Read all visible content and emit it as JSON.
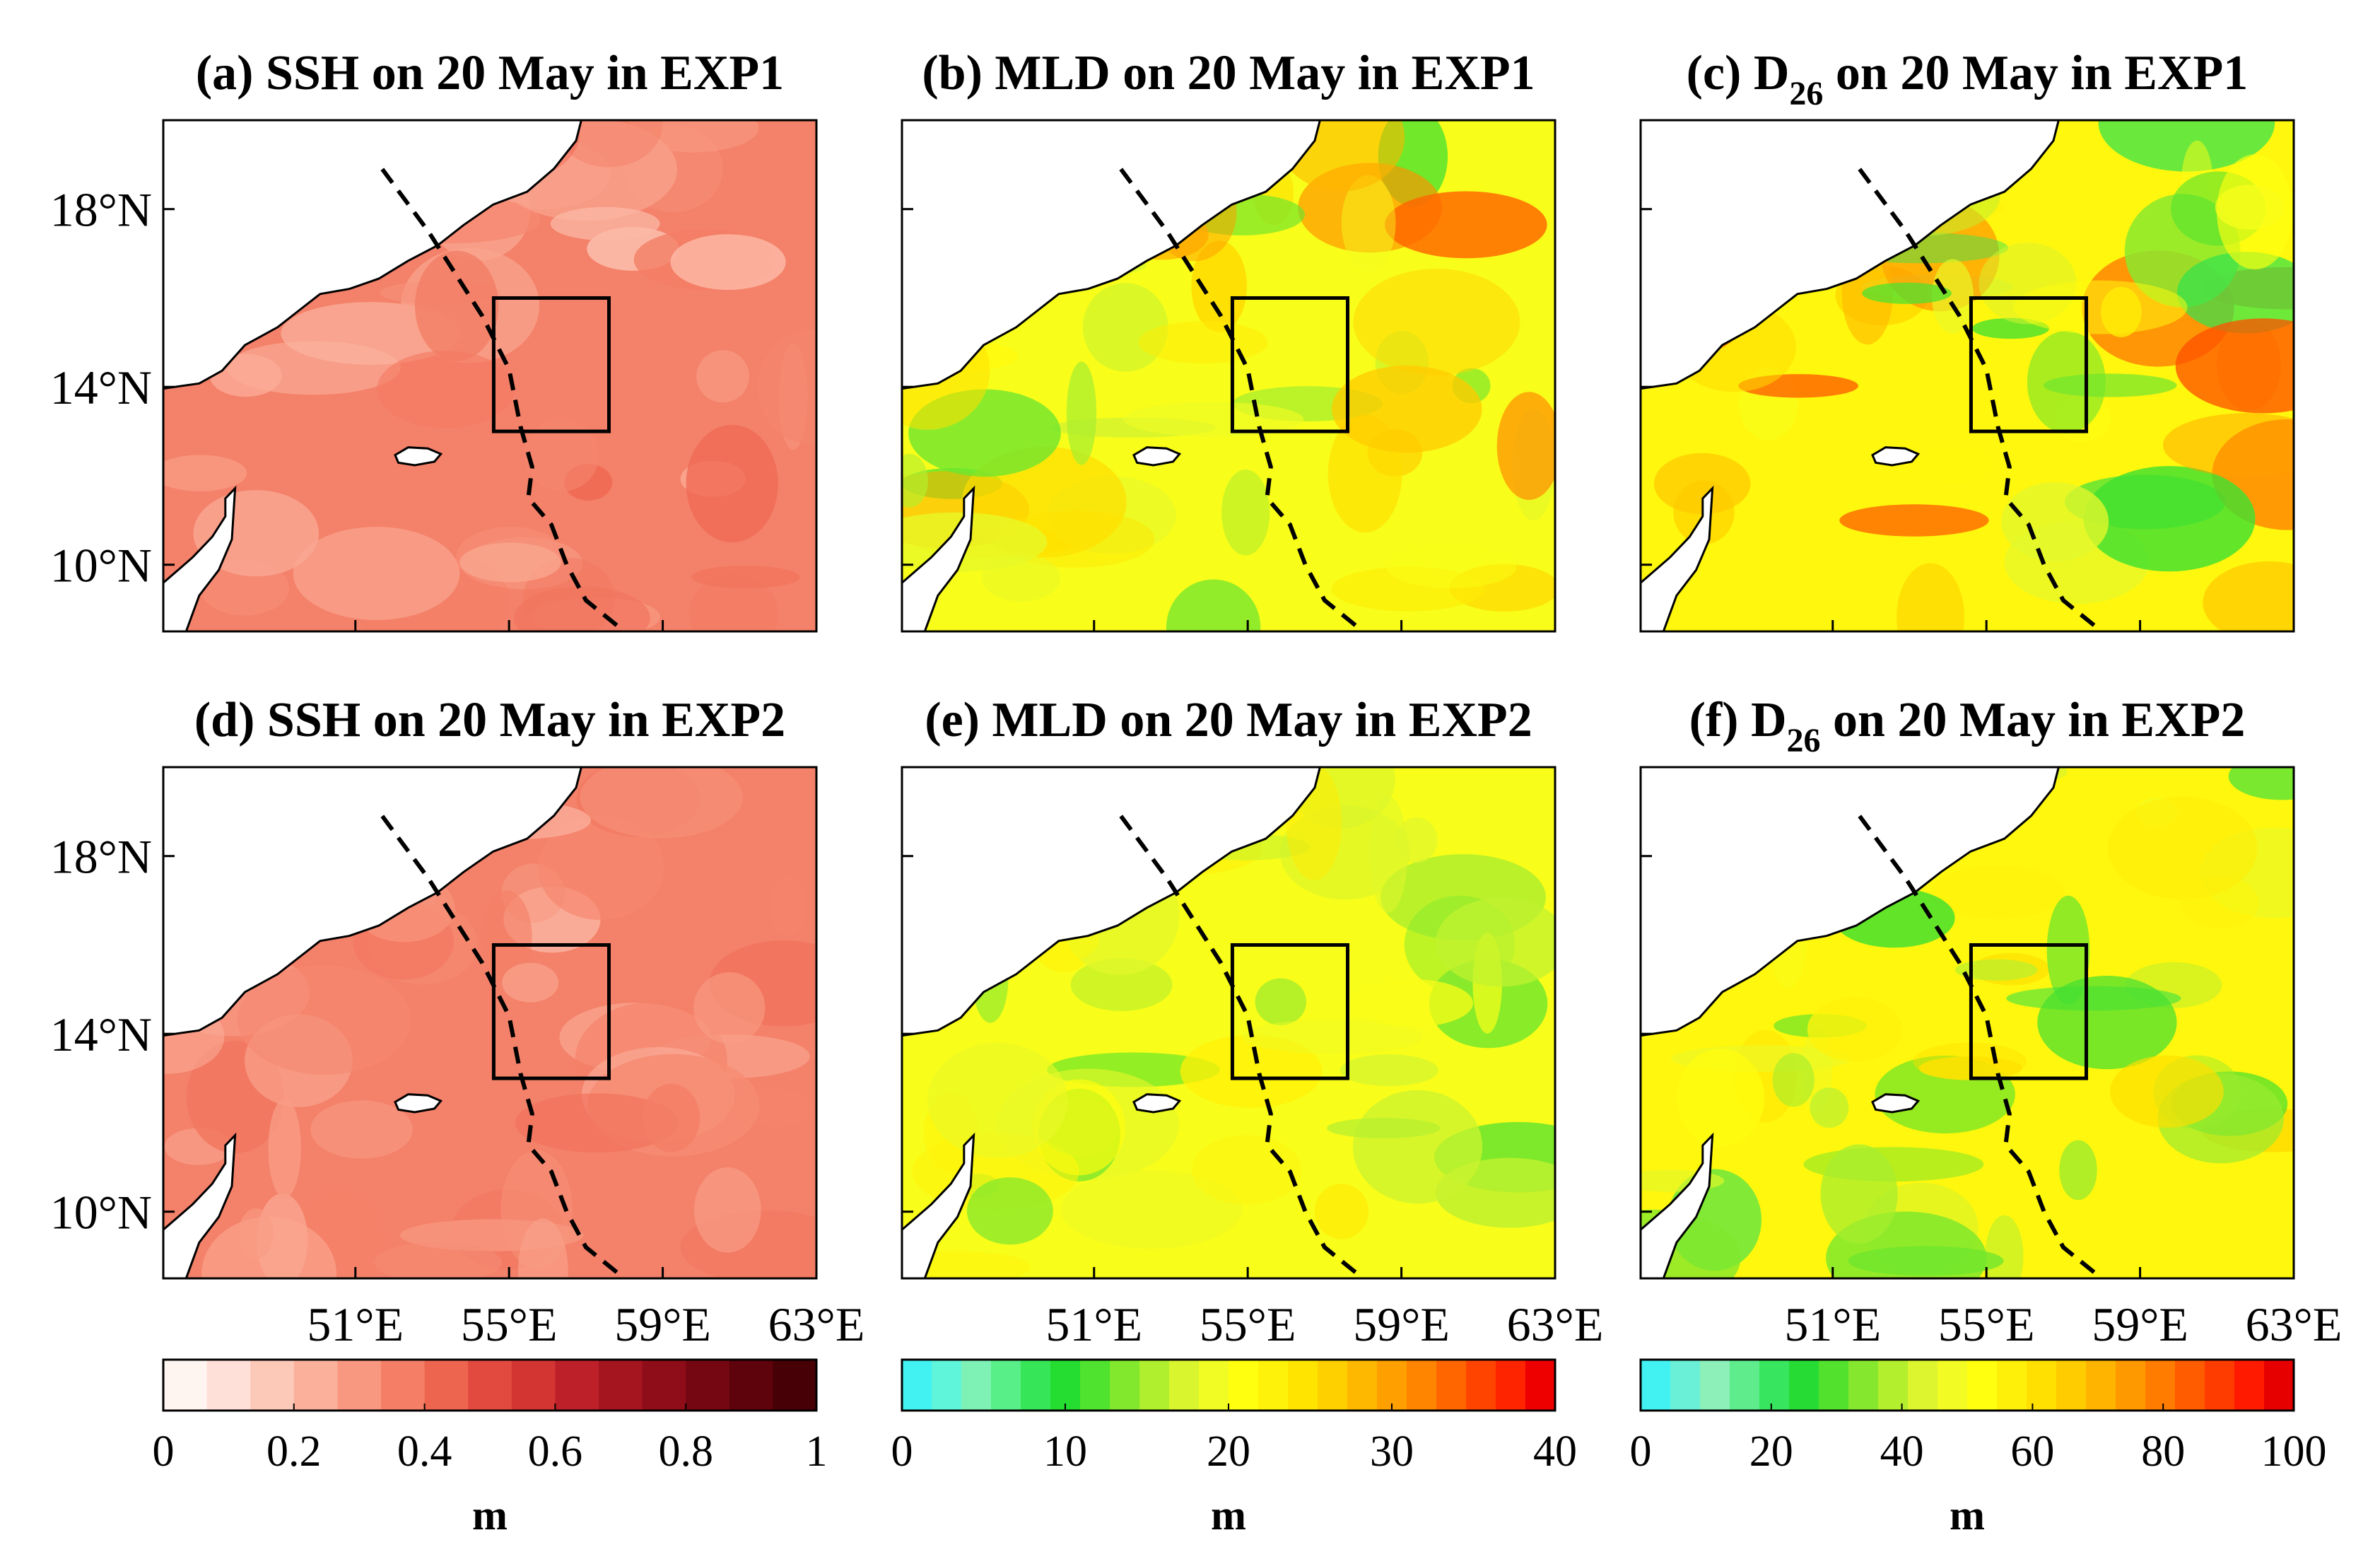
{
  "chart_data": [
    {
      "panel": "a",
      "type": "heatmap",
      "variable": "SSH",
      "title": {
        "prefix": "(a) SSH",
        "sub": "",
        "suffix": " on 20 May in EXP1"
      },
      "colorbar": "ssh",
      "range": [
        0.15,
        0.45
      ],
      "dominant_value": 0.35,
      "xlim": [
        46,
        63
      ],
      "ylim": [
        8.5,
        20
      ],
      "xticks": [
        51,
        55,
        59,
        63
      ],
      "yticks": [
        18,
        14,
        10
      ]
    },
    {
      "panel": "b",
      "type": "heatmap",
      "variable": "MLD",
      "title": {
        "prefix": "(b) MLD",
        "sub": "",
        "suffix": " on 20 May in EXP1"
      },
      "colorbar": "mld",
      "range": [
        10,
        35
      ],
      "dominant_value": 20,
      "xlim": [
        46,
        63
      ],
      "ylim": [
        8.5,
        20
      ],
      "xticks": [
        51,
        55,
        59,
        63
      ],
      "yticks": [
        18,
        14,
        10
      ]
    },
    {
      "panel": "c",
      "type": "heatmap",
      "variable": "D26",
      "title": {
        "prefix": "(c) D",
        "sub": "26",
        "suffix": " on 20 May in EXP1"
      },
      "colorbar": "d26",
      "range": [
        20,
        90
      ],
      "dominant_value": 55,
      "xlim": [
        46,
        63
      ],
      "ylim": [
        8.5,
        20
      ],
      "xticks": [
        51,
        55,
        59,
        63
      ],
      "yticks": [
        18,
        14,
        10
      ]
    },
    {
      "panel": "d",
      "type": "heatmap",
      "variable": "SSH",
      "title": {
        "prefix": "(d) SSH",
        "sub": "",
        "suffix": " on 20 May in EXP2"
      },
      "colorbar": "ssh",
      "range": [
        0.2,
        0.4
      ],
      "dominant_value": 0.35,
      "xlim": [
        46,
        63
      ],
      "ylim": [
        8.5,
        20
      ],
      "xticks": [
        51,
        55,
        59,
        63
      ],
      "yticks": [
        18,
        14,
        10
      ]
    },
    {
      "panel": "e",
      "type": "heatmap",
      "variable": "MLD",
      "title": {
        "prefix": "(e) MLD",
        "sub": "",
        "suffix": " on 20 May in EXP2"
      },
      "colorbar": "mld",
      "range": [
        10,
        25
      ],
      "dominant_value": 20,
      "xlim": [
        46,
        63
      ],
      "ylim": [
        8.5,
        20
      ],
      "xticks": [
        51,
        55,
        59,
        63
      ],
      "yticks": [
        18,
        14,
        10
      ]
    },
    {
      "panel": "f",
      "type": "heatmap",
      "variable": "D26",
      "title": {
        "prefix": "(f) D",
        "sub": "26",
        "suffix": " on 20 May in EXP2"
      },
      "colorbar": "d26",
      "range": [
        20,
        70
      ],
      "dominant_value": 55,
      "xlim": [
        46,
        63
      ],
      "ylim": [
        8.5,
        20
      ],
      "xticks": [
        51,
        55,
        59,
        63
      ],
      "yticks": [
        18,
        14,
        10
      ]
    }
  ],
  "axes": {
    "ylabels": [
      "18°N",
      "14°N",
      "10°N"
    ],
    "xlabels": [
      "51°E",
      "55°E",
      "59°E",
      "63°E"
    ]
  },
  "track": [
    {
      "lon": 51.7,
      "lat": 18.9
    },
    {
      "lon": 52.9,
      "lat": 17.5
    },
    {
      "lon": 54.3,
      "lat": 15.6
    },
    {
      "lon": 55.0,
      "lat": 14.4
    },
    {
      "lon": 55.3,
      "lat": 13.1
    },
    {
      "lon": 55.6,
      "lat": 12.2
    },
    {
      "lon": 55.5,
      "lat": 11.5
    },
    {
      "lon": 56.1,
      "lat": 10.9
    },
    {
      "lon": 56.5,
      "lat": 10.0
    },
    {
      "lon": 57.0,
      "lat": 9.2
    },
    {
      "lon": 58.0,
      "lat": 8.5
    }
  ],
  "box": {
    "lon": [
      54.6,
      57.6
    ],
    "lat": [
      13.0,
      16.0
    ]
  },
  "colorbars": {
    "ssh": {
      "unit": "m",
      "ticks": [
        "0",
        "0.2",
        "0.4",
        "0.6",
        "0.8",
        "1"
      ],
      "colors": [
        "#fff5f0",
        "#fee0d8",
        "#fcc8b8",
        "#fbb09c",
        "#f89880",
        "#f47e66",
        "#ee654f",
        "#e34a3f",
        "#d33533",
        "#bd2028",
        "#a51520",
        "#8e0d18",
        "#750712",
        "#5e020b",
        "#470005"
      ]
    },
    "mld": {
      "unit": "m",
      "ticks": [
        "0",
        "10",
        "20",
        "30",
        "40"
      ],
      "colors": [
        "#42f2f2",
        "#5ef5da",
        "#7ef2b4",
        "#58ee88",
        "#36e658",
        "#24dd30",
        "#4fe22e",
        "#82e82e",
        "#b0ef2e",
        "#d8f52e",
        "#f1fb24",
        "#ffff10",
        "#fff20a",
        "#ffe400",
        "#ffd000",
        "#ffb800",
        "#ff9f00",
        "#ff8400",
        "#ff6600",
        "#ff4400",
        "#ff2400",
        "#ee0000"
      ]
    },
    "d26": {
      "unit": "m",
      "ticks": [
        "0",
        "20",
        "40",
        "60",
        "80",
        "100"
      ],
      "colors": [
        "#42f2f2",
        "#6af0d6",
        "#8cf0b8",
        "#5eec8c",
        "#38e55e",
        "#26dc34",
        "#52e22e",
        "#86e82e",
        "#b4ef2e",
        "#dcf52e",
        "#f3fb24",
        "#ffff10",
        "#fff00a",
        "#ffe000",
        "#ffcc00",
        "#ffb400",
        "#ff9900",
        "#ff7c00",
        "#ff5c00",
        "#ff3c00",
        "#ff1a00",
        "#e60000"
      ]
    },
    "colors_model": "ssh: white→dark red; mld/d26: cyan→green→yellow→orange→red"
  }
}
